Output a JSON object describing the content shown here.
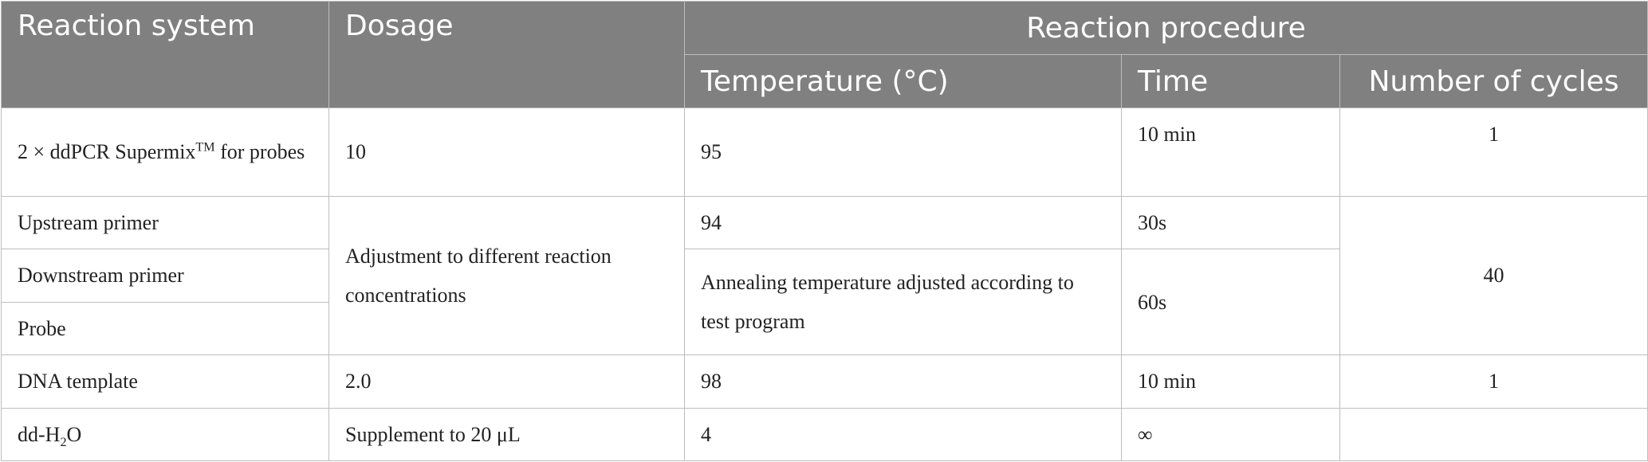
{
  "headers": {
    "reaction_system": "Reaction system",
    "dosage": "Dosage",
    "reaction_procedure": "Reaction procedure",
    "temperature": "Temperature (°C)",
    "time": "Time",
    "cycles": "Number of cycles"
  },
  "rows": {
    "r1": {
      "system_pre": "2 × ddPCR Supermix",
      "system_sup": "TM",
      "system_post": " for probes",
      "dosage": "10",
      "temperature": "95",
      "time": "10 min",
      "cycles": "1"
    },
    "r2": {
      "system": "Upstream primer",
      "temperature": "94",
      "time": "30s"
    },
    "r3": {
      "system": "Downstream primer",
      "temperature": "Annealing temperature adjusted according to test program",
      "time": "60s"
    },
    "r4": {
      "system": "Probe"
    },
    "group_dosage": "Adjustment to different reaction concentrations",
    "group_cycles": "40",
    "r5": {
      "system": "DNA template",
      "dosage": "2.0",
      "temperature": "98",
      "time": "10 min",
      "cycles": "1"
    },
    "r6": {
      "system_pre": "dd-H",
      "system_sub": "2",
      "system_post": "O",
      "dosage": "Supplement to 20 μL",
      "temperature": "4",
      "time": "∞",
      "cycles": ""
    }
  }
}
